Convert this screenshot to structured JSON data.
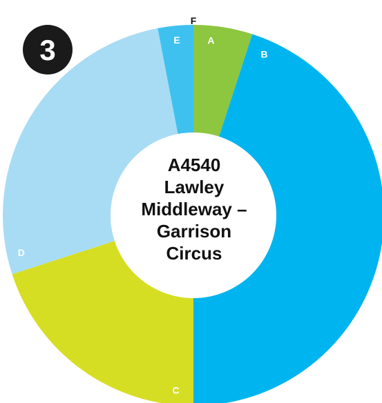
{
  "badge": {
    "number": "3",
    "fill": "#1a1a1a",
    "text_color": "#ffffff"
  },
  "center": {
    "lines": [
      "A4540",
      "Lawley",
      "Middleway –",
      "Garrison",
      "Circus"
    ],
    "fill": "#ffffff",
    "text_color": "#111111"
  },
  "chart_data": {
    "type": "pie",
    "style": "donut",
    "title": "",
    "slices": [
      {
        "label": "A",
        "value": 5,
        "color": "#8dc63f"
      },
      {
        "label": "B",
        "value": 45,
        "color": "#00b5ef"
      },
      {
        "label": "C",
        "value": 20,
        "color": "#d6de23"
      },
      {
        "label": "D",
        "value": 27,
        "color": "#a8dcf5"
      },
      {
        "label": "E",
        "value": 3,
        "color": "#3fc1f0"
      },
      {
        "label": "F",
        "value": 0,
        "color": "#cccccc"
      }
    ]
  }
}
